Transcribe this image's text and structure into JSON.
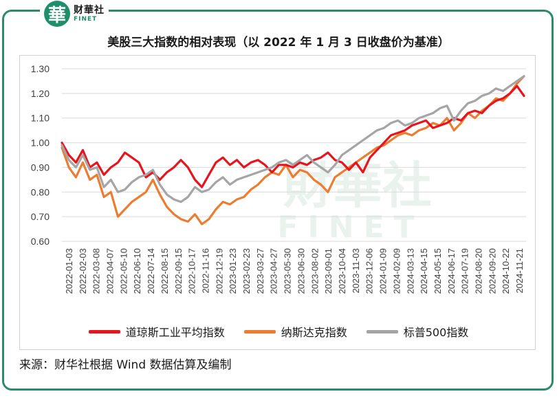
{
  "logo": {
    "mark": "華",
    "cn": "财華社",
    "en": "FINET"
  },
  "title": "美股三大指数的相对表现（以 2022 年 1 月 3 日收盘价为基准）",
  "source": "来源：财华社根据 Wind 数据估算及编制",
  "watermark": {
    "cn": "財華社",
    "en": "FINET"
  },
  "colors": {
    "frame": "#2f8a6c",
    "dow": "#e8141c",
    "nasdaq": "#ec7c30",
    "sp500": "#a5a5a5"
  },
  "chart_data": {
    "type": "line",
    "title": "美股三大指数的相对表现（以 2022 年 1 月 3 日收盘价为基准）",
    "xlabel": "",
    "ylabel": "",
    "ylim": [
      0.6,
      1.3
    ],
    "yticks": [
      "0.60",
      "0.70",
      "0.80",
      "0.90",
      "1.00",
      "1.10",
      "1.20",
      "1.30"
    ],
    "grid": "horizontal",
    "legend_position": "bottom",
    "x_tick_labels": [
      "2022-01-03",
      "2022-02-03",
      "2022-03-08",
      "2022-04-07",
      "2022-05-10",
      "2022-06-10",
      "2022-07-14",
      "2022-08-15",
      "2022-09-15",
      "2022-10-17",
      "2022-11-16",
      "2022-12-19",
      "2023-01-23",
      "2023-02-23",
      "2023-03-27",
      "2023-04-27",
      "2023-05-30",
      "2023-06-30",
      "2023-08-02",
      "2023-09-01",
      "2023-10-04",
      "2023-11-03",
      "2023-12-06",
      "2024-01-09",
      "2024-02-09",
      "2024-03-13",
      "2024-04-15",
      "2024-05-15",
      "2024-06-17",
      "2024-07-19",
      "2024-08-20",
      "2024-09-20",
      "2024-10-22",
      "2024-11-21"
    ],
    "series": [
      {
        "name": "道琼斯工业平均指数",
        "color": "#e8141c",
        "values": [
          1.0,
          0.95,
          0.92,
          0.97,
          0.9,
          0.92,
          0.87,
          0.9,
          0.92,
          0.96,
          0.94,
          0.92,
          0.86,
          0.88,
          0.85,
          0.88,
          0.9,
          0.93,
          0.9,
          0.85,
          0.82,
          0.87,
          0.92,
          0.94,
          0.91,
          0.93,
          0.9,
          0.92,
          0.93,
          0.91,
          0.88,
          0.91,
          0.91,
          0.9,
          0.92,
          0.91,
          0.93,
          0.94,
          0.96,
          0.93,
          0.92,
          0.89,
          0.92,
          0.88,
          0.94,
          0.97,
          1.0,
          1.03,
          1.04,
          1.05,
          1.07,
          1.08,
          1.09,
          1.06,
          1.07,
          1.08,
          1.1,
          1.09,
          1.12,
          1.13,
          1.12,
          1.15,
          1.17,
          1.18,
          1.2,
          1.23,
          1.19
        ]
      },
      {
        "name": "纳斯达克指数",
        "color": "#ec7c30",
        "values": [
          0.98,
          0.9,
          0.86,
          0.92,
          0.85,
          0.87,
          0.78,
          0.8,
          0.7,
          0.73,
          0.76,
          0.78,
          0.8,
          0.85,
          0.79,
          0.74,
          0.71,
          0.69,
          0.68,
          0.71,
          0.67,
          0.69,
          0.73,
          0.76,
          0.75,
          0.77,
          0.78,
          0.81,
          0.83,
          0.86,
          0.88,
          0.87,
          0.91,
          0.86,
          0.89,
          0.88,
          0.85,
          0.83,
          0.8,
          0.86,
          0.88,
          0.9,
          0.92,
          0.94,
          0.96,
          0.98,
          0.99,
          1.01,
          1.03,
          1.04,
          1.03,
          1.05,
          1.06,
          1.08,
          1.07,
          1.1,
          1.05,
          1.08,
          1.12,
          1.1,
          1.13,
          1.15,
          1.18,
          1.17,
          1.2,
          1.24,
          1.27
        ]
      },
      {
        "name": "标普500指数",
        "color": "#a5a5a5",
        "values": [
          0.99,
          0.93,
          0.9,
          0.95,
          0.89,
          0.9,
          0.82,
          0.85,
          0.8,
          0.81,
          0.84,
          0.86,
          0.87,
          0.89,
          0.83,
          0.79,
          0.77,
          0.76,
          0.78,
          0.82,
          0.8,
          0.81,
          0.84,
          0.86,
          0.83,
          0.85,
          0.86,
          0.87,
          0.88,
          0.89,
          0.9,
          0.92,
          0.93,
          0.91,
          0.93,
          0.95,
          0.92,
          0.9,
          0.88,
          0.91,
          0.95,
          0.97,
          0.99,
          1.01,
          1.03,
          1.05,
          1.06,
          1.08,
          1.09,
          1.07,
          1.08,
          1.1,
          1.11,
          1.12,
          1.14,
          1.15,
          1.09,
          1.13,
          1.16,
          1.17,
          1.19,
          1.2,
          1.22,
          1.21,
          1.23,
          1.25,
          1.27
        ]
      }
    ]
  }
}
